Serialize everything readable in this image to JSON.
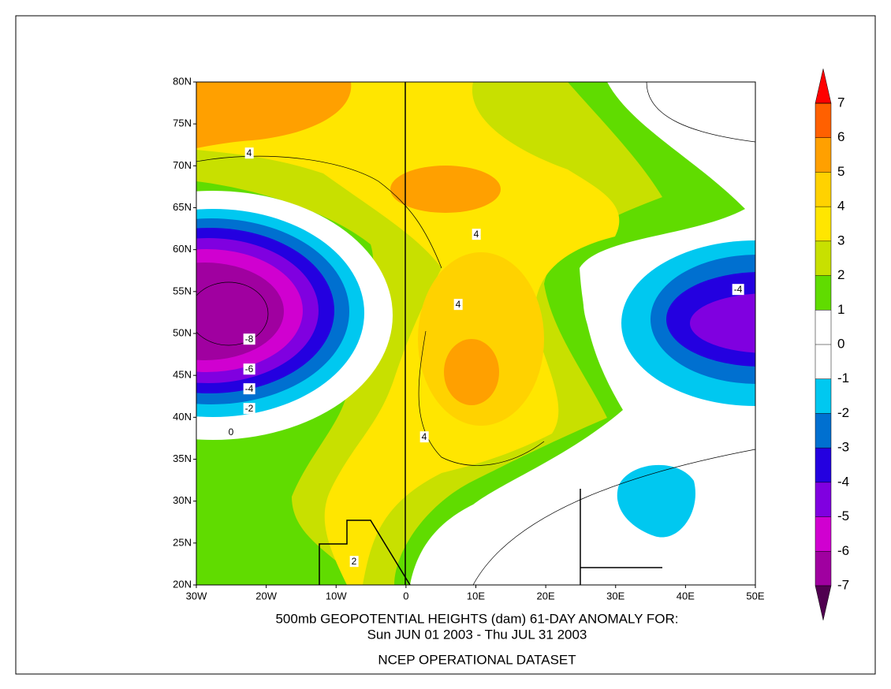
{
  "map": {
    "lat_labels": [
      "80N",
      "75N",
      "70N",
      "65N",
      "60N",
      "55N",
      "50N",
      "45N",
      "40N",
      "35N",
      "30N",
      "25N",
      "20N"
    ],
    "lon_labels": [
      "30W",
      "20W",
      "10W",
      "0",
      "10E",
      "20E",
      "30E",
      "40E",
      "50E"
    ],
    "title": [
      "500mb GEOPOTENTIAL HEIGHTS (dam)   61-DAY ANOMALY FOR:",
      "Sun JUN 01 2003 - Thu JUL 31 2003"
    ],
    "dataset": "NCEP OPERATIONAL DATASET",
    "colorbar": {
      "labels": [
        "7",
        "6",
        "5",
        "4",
        "3",
        "2",
        "1",
        "0",
        "-1",
        "-2",
        "-3",
        "-4",
        "-5",
        "-6",
        "-7"
      ],
      "above_color": "#ff0000",
      "below_color": "#500050",
      "band_colors": [
        "#ff6000",
        "#ffa000",
        "#ffd200",
        "#ffe600",
        "#c8e000",
        "#60dc00",
        "#ffffff",
        "#ffffff",
        "#00c8f0",
        "#0070d0",
        "#2400e0",
        "#8000e0",
        "#d000d0",
        "#a000a0"
      ]
    },
    "contour_labels": [
      "4",
      "-8",
      "-6",
      "-4",
      "-2",
      "0",
      "4",
      "4",
      "4",
      "-4",
      "2"
    ]
  }
}
